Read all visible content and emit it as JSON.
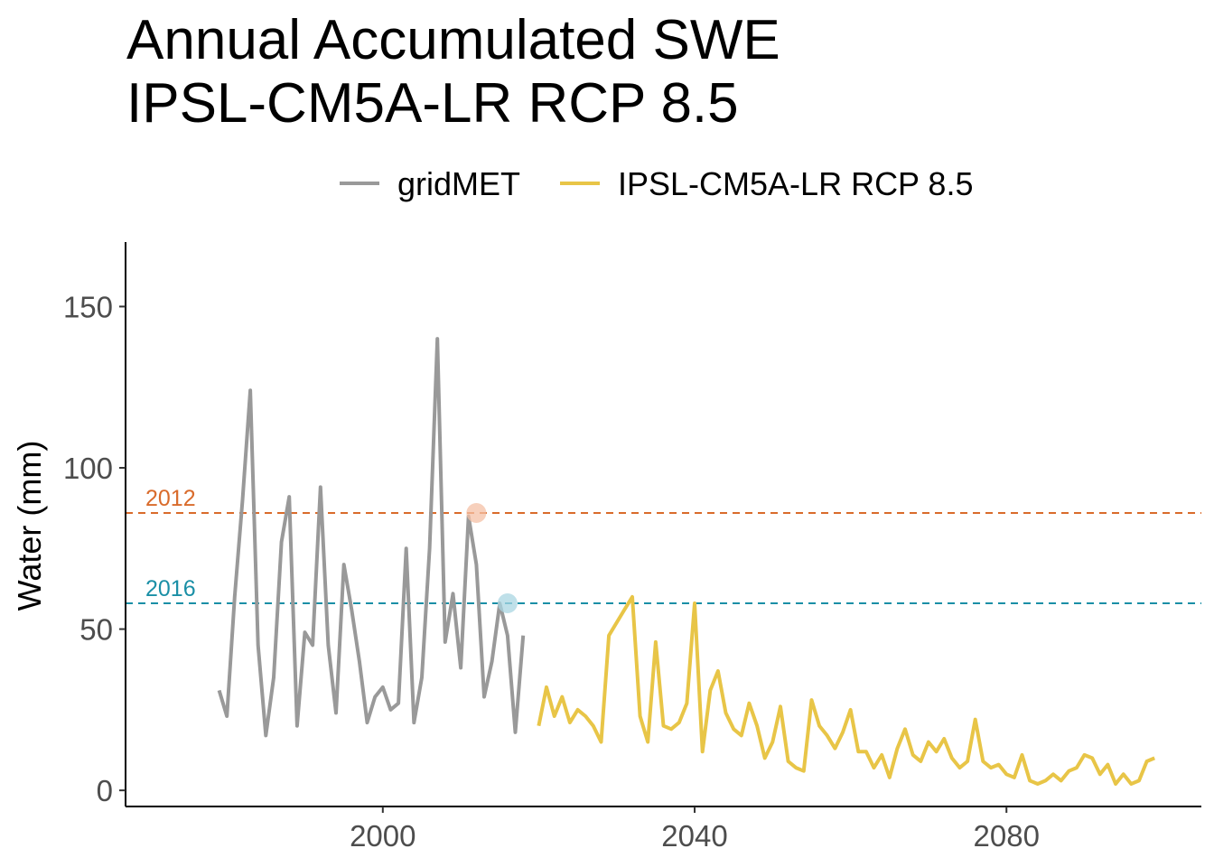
{
  "chart_data": {
    "type": "line",
    "title": "Annual Accumulated SWE",
    "subtitle": "IPSL-CM5A-LR RCP 8.5",
    "xlabel": "",
    "ylabel": "Water (mm)",
    "xlim": [
      1967,
      2105
    ],
    "ylim": [
      -5,
      170
    ],
    "x_ticks": [
      2000,
      2040,
      2080
    ],
    "y_ticks": [
      0,
      50,
      100,
      150
    ],
    "grid": false,
    "legend_position": "top",
    "series": [
      {
        "name": "gridMET",
        "color": "#999999",
        "x": [
          1979,
          1980,
          1981,
          1982,
          1983,
          1984,
          1985,
          1986,
          1987,
          1988,
          1989,
          1990,
          1991,
          1992,
          1993,
          1994,
          1995,
          1996,
          1997,
          1998,
          1999,
          2000,
          2001,
          2002,
          2003,
          2004,
          2005,
          2006,
          2007,
          2008,
          2009,
          2010,
          2011,
          2012,
          2013,
          2014,
          2015,
          2016,
          2017,
          2018,
          2019
        ],
        "values": [
          31,
          23,
          60,
          90,
          124,
          45,
          17,
          35,
          77,
          91,
          20,
          49,
          45,
          94,
          45,
          24,
          70,
          56,
          40,
          21,
          29,
          32,
          25,
          27,
          75,
          21,
          35,
          75,
          140,
          46,
          61,
          38,
          85,
          70,
          29,
          40,
          58,
          48,
          18,
          48,
          null
        ]
      },
      {
        "name": "IPSL-CM5A-LR RCP 8.5",
        "color": "#E8C547",
        "x": [
          2020,
          2021,
          2022,
          2023,
          2024,
          2025,
          2026,
          2027,
          2028,
          2029,
          2030,
          2031,
          2032,
          2033,
          2034,
          2035,
          2036,
          2037,
          2038,
          2039,
          2040,
          2041,
          2042,
          2043,
          2044,
          2045,
          2046,
          2047,
          2048,
          2049,
          2050,
          2051,
          2052,
          2053,
          2054,
          2055,
          2056,
          2057,
          2058,
          2059,
          2060,
          2061,
          2062,
          2063,
          2064,
          2065,
          2066,
          2067,
          2068,
          2069,
          2070,
          2071,
          2072,
          2073,
          2074,
          2075,
          2076,
          2077,
          2078,
          2079,
          2080,
          2081,
          2082,
          2083,
          2084,
          2085,
          2086,
          2087,
          2088,
          2089,
          2090,
          2091,
          2092,
          2093,
          2094,
          2095,
          2096,
          2097,
          2098,
          2099
        ],
        "values": [
          20,
          32,
          23,
          29,
          21,
          25,
          23,
          20,
          15,
          48,
          52,
          56,
          60,
          23,
          15,
          46,
          20,
          19,
          21,
          27,
          58,
          12,
          31,
          37,
          24,
          19,
          17,
          27,
          20,
          10,
          15,
          26,
          9,
          7,
          6,
          28,
          20,
          17,
          13,
          18,
          25,
          12,
          12,
          7,
          11,
          4,
          13,
          19,
          11,
          9,
          15,
          12,
          16,
          10,
          7,
          9,
          22,
          9,
          7,
          8,
          5,
          4,
          11,
          3,
          2,
          3,
          5,
          3,
          6,
          7,
          11,
          10,
          5,
          8,
          2,
          5,
          2,
          3,
          9,
          10
        ]
      }
    ],
    "reference_lines": [
      {
        "label": "2012",
        "value": 86,
        "year": 2012,
        "color": "#D96B2B",
        "marker_color": "#F4C0A5"
      },
      {
        "label": "2016",
        "value": 58,
        "year": 2016,
        "color": "#1A8FA6",
        "marker_color": "#A9D6E2"
      }
    ]
  }
}
